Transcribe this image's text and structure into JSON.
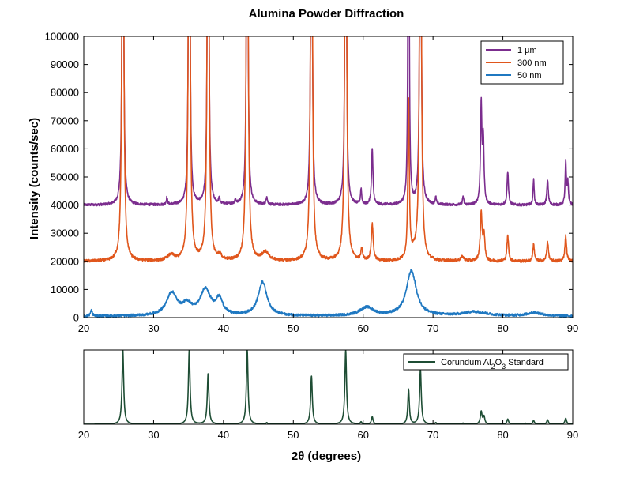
{
  "chart_data": [
    {
      "type": "line",
      "title": "Alumina Powder Diffraction",
      "xlabel": "",
      "ylabel": "Intensity (counts/sec)",
      "xlim": [
        20,
        90
      ],
      "ylim": [
        0,
        100000
      ],
      "xticks": [
        "20",
        "30",
        "40",
        "50",
        "60",
        "70",
        "80",
        "90"
      ],
      "yticks": [
        "0",
        "10000",
        "20000",
        "30000",
        "40000",
        "50000",
        "60000",
        "70000",
        "80000",
        "90000",
        "100000"
      ],
      "legend_position": "top-right",
      "series": [
        {
          "name": "1 µm",
          "color": "#7B2D8E",
          "baseline": 40000,
          "noise": 450,
          "peaks": [
            {
              "x": 25.6,
              "h": 200000,
              "w": 0.1
            },
            {
              "x": 35.1,
              "h": 200000,
              "w": 0.1
            },
            {
              "x": 37.8,
              "h": 200000,
              "w": 0.1
            },
            {
              "x": 43.4,
              "h": 200000,
              "w": 0.1
            },
            {
              "x": 52.6,
              "h": 200000,
              "w": 0.1
            },
            {
              "x": 57.5,
              "h": 200000,
              "w": 0.1
            },
            {
              "x": 66.5,
              "h": 200000,
              "w": 0.08
            },
            {
              "x": 68.2,
              "h": 200000,
              "w": 0.1
            },
            {
              "x": 61.3,
              "h": 20000,
              "w": 0.12
            },
            {
              "x": 59.7,
              "h": 5500,
              "w": 0.1
            },
            {
              "x": 76.9,
              "h": 35000,
              "w": 0.12
            },
            {
              "x": 77.2,
              "h": 22000,
              "w": 0.12
            },
            {
              "x": 80.7,
              "h": 12000,
              "w": 0.12
            },
            {
              "x": 84.4,
              "h": 9000,
              "w": 0.1
            },
            {
              "x": 86.4,
              "h": 9000,
              "w": 0.12
            },
            {
              "x": 89.0,
              "h": 15000,
              "w": 0.1
            },
            {
              "x": 89.3,
              "h": 8000,
              "w": 0.1
            },
            {
              "x": 31.9,
              "h": 2500,
              "w": 0.1
            },
            {
              "x": 39.4,
              "h": 2000,
              "w": 0.1
            },
            {
              "x": 41.7,
              "h": 1500,
              "w": 0.1
            },
            {
              "x": 46.2,
              "h": 3000,
              "w": 0.1
            },
            {
              "x": 70.4,
              "h": 2500,
              "w": 0.1
            },
            {
              "x": 74.3,
              "h": 3000,
              "w": 0.1
            }
          ]
        },
        {
          "name": "300 nm",
          "color": "#E0561C",
          "baseline": 20000,
          "noise": 500,
          "peaks": [
            {
              "x": 25.6,
              "h": 200000,
              "w": 0.13
            },
            {
              "x": 35.1,
              "h": 200000,
              "w": 0.13
            },
            {
              "x": 37.8,
              "h": 200000,
              "w": 0.13
            },
            {
              "x": 43.4,
              "h": 200000,
              "w": 0.13
            },
            {
              "x": 52.6,
              "h": 200000,
              "w": 0.13
            },
            {
              "x": 57.5,
              "h": 200000,
              "w": 0.13
            },
            {
              "x": 66.5,
              "h": 56000,
              "w": 0.12
            },
            {
              "x": 68.2,
              "h": 200000,
              "w": 0.13
            },
            {
              "x": 61.3,
              "h": 13000,
              "w": 0.16
            },
            {
              "x": 59.8,
              "h": 4000,
              "w": 0.14
            },
            {
              "x": 76.9,
              "h": 17000,
              "w": 0.16
            },
            {
              "x": 77.3,
              "h": 9000,
              "w": 0.14
            },
            {
              "x": 80.7,
              "h": 9000,
              "w": 0.14
            },
            {
              "x": 84.4,
              "h": 6000,
              "w": 0.14
            },
            {
              "x": 86.4,
              "h": 7000,
              "w": 0.14
            },
            {
              "x": 89.0,
              "h": 9000,
              "w": 0.14
            },
            {
              "x": 32.5,
              "h": 2000,
              "w": 0.6
            },
            {
              "x": 46.0,
              "h": 3000,
              "w": 0.6
            },
            {
              "x": 67.3,
              "h": 2500,
              "w": 0.5
            },
            {
              "x": 39.5,
              "h": 1500,
              "w": 0.3
            },
            {
              "x": 74.2,
              "h": 1500,
              "w": 0.3
            }
          ]
        },
        {
          "name": "50 nm",
          "color": "#1F78C1",
          "baseline": 500,
          "noise": 450,
          "peaks": [
            {
              "x": 32.6,
              "h": 8000,
              "w": 0.9
            },
            {
              "x": 34.8,
              "h": 3500,
              "w": 0.8
            },
            {
              "x": 37.4,
              "h": 9000,
              "w": 0.9
            },
            {
              "x": 39.4,
              "h": 5500,
              "w": 0.6
            },
            {
              "x": 45.6,
              "h": 12000,
              "w": 0.75
            },
            {
              "x": 60.5,
              "h": 3000,
              "w": 1.2
            },
            {
              "x": 66.9,
              "h": 16000,
              "w": 0.85
            },
            {
              "x": 76.0,
              "h": 1500,
              "w": 2.0
            },
            {
              "x": 84.5,
              "h": 1200,
              "w": 1.2
            },
            {
              "x": 21.1,
              "h": 2000,
              "w": 0.15
            }
          ]
        }
      ]
    },
    {
      "type": "line",
      "title": "",
      "xlabel": "2θ (degrees)",
      "ylabel": "",
      "xlim": [
        20,
        90
      ],
      "ylim": [
        0,
        1
      ],
      "xticks": [
        "20",
        "30",
        "40",
        "50",
        "60",
        "70",
        "80",
        "90"
      ],
      "yticks": [],
      "legend_position": "top-right",
      "legend": {
        "prefix": "Corundum Al",
        "sub1": "2",
        "mid": "O",
        "sub2": "3",
        "suffix": " Standard"
      },
      "series": [
        {
          "name": "Corundum Al2O3 Standard",
          "color": "#1E4D34",
          "baseline": 0,
          "noise": 0,
          "peaks": [
            {
              "x": 25.6,
              "h": 1.0,
              "w": 0.14
            },
            {
              "x": 35.1,
              "h": 1.0,
              "w": 0.14
            },
            {
              "x": 37.8,
              "h": 0.68,
              "w": 0.14
            },
            {
              "x": 43.4,
              "h": 1.0,
              "w": 0.14
            },
            {
              "x": 52.6,
              "h": 0.65,
              "w": 0.14
            },
            {
              "x": 57.5,
              "h": 1.0,
              "w": 0.14
            },
            {
              "x": 61.3,
              "h": 0.1,
              "w": 0.14
            },
            {
              "x": 59.7,
              "h": 0.03,
              "w": 0.12
            },
            {
              "x": 66.5,
              "h": 0.47,
              "w": 0.13
            },
            {
              "x": 68.2,
              "h": 0.74,
              "w": 0.14
            },
            {
              "x": 76.9,
              "h": 0.17,
              "w": 0.15
            },
            {
              "x": 77.3,
              "h": 0.1,
              "w": 0.14
            },
            {
              "x": 80.7,
              "h": 0.07,
              "w": 0.14
            },
            {
              "x": 84.4,
              "h": 0.05,
              "w": 0.14
            },
            {
              "x": 86.4,
              "h": 0.06,
              "w": 0.14
            },
            {
              "x": 89.0,
              "h": 0.08,
              "w": 0.14
            },
            {
              "x": 46.2,
              "h": 0.02,
              "w": 0.12
            },
            {
              "x": 70.4,
              "h": 0.02,
              "w": 0.12
            },
            {
              "x": 74.3,
              "h": 0.015,
              "w": 0.12
            },
            {
              "x": 83.2,
              "h": 0.015,
              "w": 0.12
            }
          ]
        }
      ]
    }
  ]
}
